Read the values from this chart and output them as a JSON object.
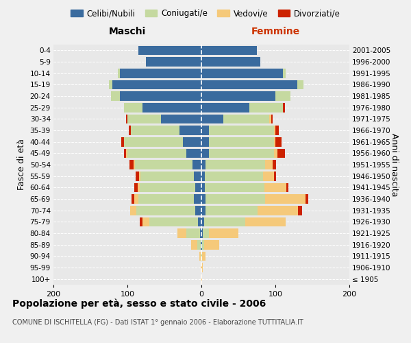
{
  "age_groups": [
    "100+",
    "95-99",
    "90-94",
    "85-89",
    "80-84",
    "75-79",
    "70-74",
    "65-69",
    "60-64",
    "55-59",
    "50-54",
    "45-49",
    "40-44",
    "35-39",
    "30-34",
    "25-29",
    "20-24",
    "15-19",
    "10-14",
    "5-9",
    "0-4"
  ],
  "birth_years": [
    "≤ 1905",
    "1906-1910",
    "1911-1915",
    "1916-1920",
    "1921-1925",
    "1926-1930",
    "1931-1935",
    "1936-1940",
    "1941-1945",
    "1946-1950",
    "1951-1955",
    "1956-1960",
    "1961-1965",
    "1966-1970",
    "1971-1975",
    "1976-1980",
    "1981-1985",
    "1986-1990",
    "1991-1995",
    "1996-2000",
    "2001-2005"
  ],
  "colors": {
    "celibi": "#3a6b9e",
    "coniugati": "#c5d9a0",
    "vedovi": "#f5c97a",
    "divorziati": "#cc2200"
  },
  "maschi": {
    "celibi": [
      0,
      0,
      0,
      1,
      2,
      5,
      8,
      10,
      8,
      10,
      12,
      20,
      25,
      30,
      55,
      80,
      110,
      120,
      110,
      75,
      85
    ],
    "coniugati": [
      0,
      0,
      1,
      5,
      18,
      65,
      80,
      75,
      75,
      72,
      78,
      80,
      80,
      65,
      45,
      25,
      12,
      5,
      3,
      0,
      0
    ],
    "vedovi": [
      0,
      1,
      2,
      8,
      12,
      10,
      8,
      6,
      3,
      2,
      2,
      2,
      0,
      0,
      0,
      0,
      0,
      0,
      0,
      0,
      0
    ],
    "divorziati": [
      0,
      0,
      0,
      0,
      0,
      3,
      0,
      3,
      5,
      5,
      5,
      3,
      3,
      3,
      2,
      0,
      0,
      0,
      0,
      0,
      0
    ]
  },
  "femmine": {
    "celibi": [
      0,
      0,
      0,
      1,
      2,
      4,
      6,
      6,
      5,
      5,
      6,
      10,
      10,
      10,
      30,
      65,
      100,
      130,
      110,
      80,
      75
    ],
    "coniugati": [
      0,
      0,
      1,
      3,
      8,
      55,
      70,
      80,
      80,
      78,
      80,
      88,
      88,
      88,
      62,
      45,
      20,
      8,
      4,
      0,
      0
    ],
    "vedovi": [
      1,
      2,
      5,
      20,
      40,
      55,
      55,
      55,
      30,
      15,
      10,
      5,
      2,
      2,
      2,
      0,
      0,
      0,
      0,
      0,
      0
    ],
    "divorziati": [
      0,
      0,
      0,
      0,
      0,
      0,
      5,
      3,
      3,
      3,
      5,
      10,
      8,
      5,
      2,
      3,
      0,
      0,
      0,
      0,
      0
    ]
  },
  "xlim": 200,
  "title": "Popolazione per età, sesso e stato civile - 2006",
  "subtitle": "COMUNE DI ISCHITELLA (FG) - Dati ISTAT 1° gennaio 2006 - Elaborazione TUTTITALIA.IT",
  "ylabel_left": "Fasce di età",
  "ylabel_right": "Anni di nascita",
  "xlabel_maschi": "Maschi",
  "xlabel_femmine": "Femmine",
  "legend_labels": [
    "Celibi/Nubili",
    "Coniugati/e",
    "Vedovi/e",
    "Divorziati/e"
  ],
  "background_color": "#f0f0f0",
  "plot_bg": "#e8e8e8"
}
